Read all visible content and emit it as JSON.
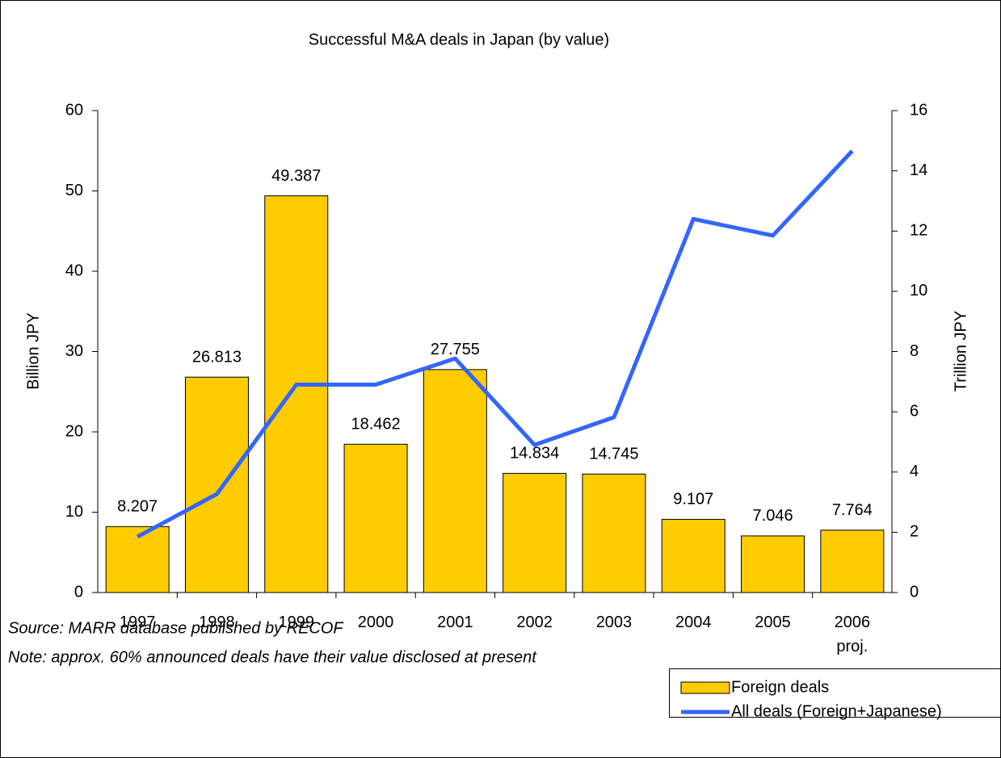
{
  "chart_data": {
    "type": "bar",
    "title": "Successful M&A deals in Japan (by value)",
    "categories": [
      "1997",
      "1998",
      "1999",
      "2000",
      "2001",
      "2002",
      "2003",
      "2004",
      "2005",
      "2006 proj."
    ],
    "series": [
      {
        "name": "Foreign deals",
        "type": "bar",
        "color": "#ffcc00",
        "values": [
          8.207,
          26.813,
          49.387,
          18.462,
          27.755,
          14.834,
          14.745,
          9.107,
          7.046,
          7.764
        ]
      },
      {
        "name": "All deals (Foreign+Japanese)",
        "type": "line",
        "color": "#3366ff",
        "axis": "y2",
        "values": [
          1.85,
          3.27,
          6.9,
          6.9,
          7.77,
          4.9,
          5.82,
          12.4,
          11.85,
          14.66
        ]
      }
    ],
    "ylabel": "Billion JPY",
    "y2label": "Trillion JPY",
    "ylim": [
      0,
      60
    ],
    "yticks": [
      0,
      10,
      20,
      30,
      40,
      50,
      60
    ],
    "y2lim": [
      0,
      16
    ],
    "y2ticks": [
      0,
      2,
      4,
      6,
      8,
      10,
      12,
      14,
      16
    ],
    "legend": "bottom-right",
    "annotations": [
      "Source: MARR database published by RECOF",
      "Note: approx. 60% announced deals have their value disclosed at present"
    ]
  }
}
